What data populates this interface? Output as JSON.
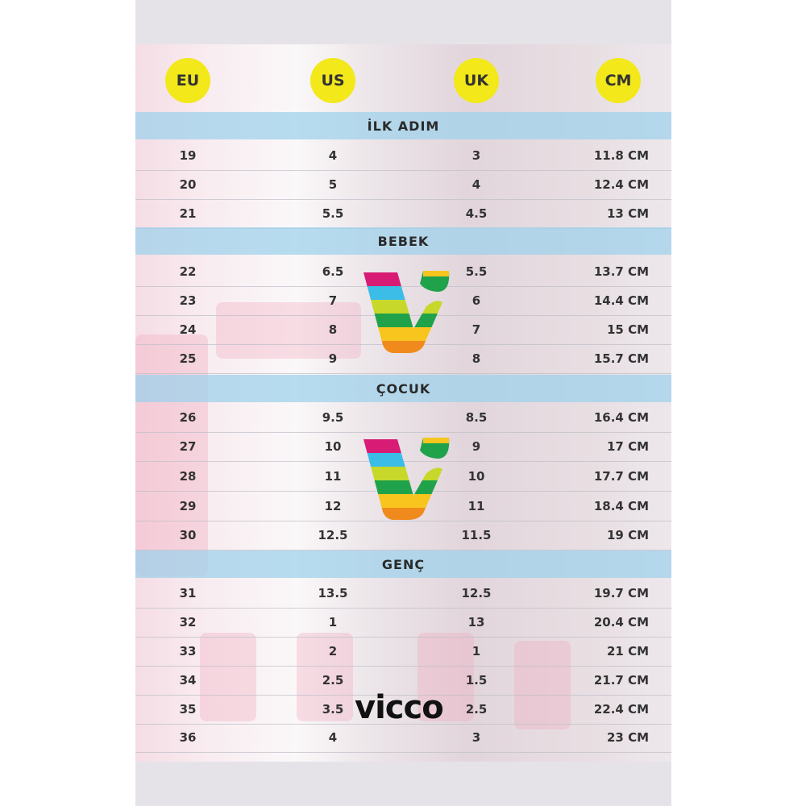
{
  "headers": [
    "EU",
    "US",
    "UK",
    "CM"
  ],
  "header_color": "#f2e81a",
  "band_color": "#a0d2eb",
  "sections": [
    {
      "title": "İLK ADIM",
      "rows": [
        [
          "19",
          "4",
          "3",
          "11.8 CM"
        ],
        [
          "20",
          "5",
          "4",
          "12.4 CM"
        ],
        [
          "21",
          "5.5",
          "4.5",
          "13 CM"
        ]
      ]
    },
    {
      "title": "BEBEK",
      "rows": [
        [
          "22",
          "6.5",
          "5.5",
          "13.7 CM"
        ],
        [
          "23",
          "7",
          "6",
          "14.4 CM"
        ],
        [
          "24",
          "8",
          "7",
          "15 CM"
        ],
        [
          "25",
          "9",
          "8",
          "15.7 CM"
        ]
      ]
    },
    {
      "title": "ÇOCUK",
      "rows": [
        [
          "26",
          "9.5",
          "8.5",
          "16.4 CM"
        ],
        [
          "27",
          "10",
          "9",
          "17 CM"
        ],
        [
          "28",
          "11",
          "10",
          "17.7 CM"
        ],
        [
          "29",
          "12",
          "11",
          "18.4 CM"
        ],
        [
          "30",
          "12.5",
          "11.5",
          "19 CM"
        ]
      ]
    },
    {
      "title": "GENÇ",
      "rows": [
        [
          "31",
          "13.5",
          "12.5",
          "19.7 CM"
        ],
        [
          "32",
          "1",
          "13",
          "20.4 CM"
        ],
        [
          "33",
          "2",
          "1",
          "21 CM"
        ],
        [
          "34",
          "2.5",
          "1.5",
          "21.7 CM"
        ],
        [
          "35",
          "3.5",
          "2.5",
          "22.4 CM"
        ],
        [
          "36",
          "4",
          "3",
          "23 CM"
        ]
      ]
    }
  ],
  "logo": {
    "brand": "vicco",
    "stripe_colors": [
      "#d81b74",
      "#3bbde8",
      "#c7d82a",
      "#1fa24a",
      "#f7c51e",
      "#f08a1c"
    ]
  }
}
